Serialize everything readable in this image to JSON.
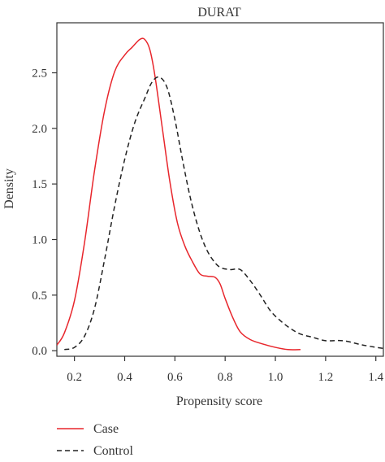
{
  "chart_data": {
    "type": "line",
    "title": "DURAT",
    "xlabel": "Propensity score",
    "ylabel": "Density",
    "xlim": [
      0.13,
      1.43
    ],
    "ylim": [
      -0.05,
      2.95
    ],
    "x_ticks": [
      {
        "value": 0.2,
        "label": "0.2"
      },
      {
        "value": 0.4,
        "label": "0.4"
      },
      {
        "value": 0.6,
        "label": "0.6"
      },
      {
        "value": 0.8,
        "label": "0.8"
      },
      {
        "value": 1.0,
        "label": "1.0"
      },
      {
        "value": 1.2,
        "label": "1.2"
      },
      {
        "value": 1.4,
        "label": "1.4"
      }
    ],
    "y_ticks": [
      {
        "value": 0.0,
        "label": "0.0"
      },
      {
        "value": 0.5,
        "label": "0.5"
      },
      {
        "value": 1.0,
        "label": "1.0"
      },
      {
        "value": 1.5,
        "label": "1.5"
      },
      {
        "value": 2.0,
        "label": "2.0"
      },
      {
        "value": 2.5,
        "label": "2.5"
      }
    ],
    "grid": false,
    "legend_position": "bottom-left",
    "series": [
      {
        "name": "Case",
        "color": "#e8262c",
        "dash": "solid",
        "x": [
          0.13,
          0.16,
          0.2,
          0.24,
          0.28,
          0.32,
          0.36,
          0.4,
          0.43,
          0.46,
          0.48,
          0.5,
          0.52,
          0.55,
          0.58,
          0.61,
          0.64,
          0.67,
          0.7,
          0.73,
          0.76,
          0.78,
          0.8,
          0.83,
          0.86,
          0.9,
          0.95,
          1.0,
          1.05,
          1.1
        ],
        "y": [
          0.05,
          0.16,
          0.45,
          0.97,
          1.62,
          2.16,
          2.51,
          2.66,
          2.73,
          2.8,
          2.8,
          2.71,
          2.48,
          2.0,
          1.52,
          1.15,
          0.94,
          0.8,
          0.69,
          0.67,
          0.66,
          0.6,
          0.47,
          0.3,
          0.17,
          0.1,
          0.06,
          0.03,
          0.01,
          0.01
        ]
      },
      {
        "name": "Control",
        "color": "#222222",
        "dash": "dashed",
        "x": [
          0.16,
          0.2,
          0.24,
          0.28,
          0.32,
          0.36,
          0.4,
          0.44,
          0.48,
          0.51,
          0.54,
          0.57,
          0.6,
          0.63,
          0.66,
          0.69,
          0.72,
          0.75,
          0.78,
          0.82,
          0.86,
          0.9,
          0.94,
          0.98,
          1.02,
          1.06,
          1.1,
          1.15,
          1.2,
          1.27,
          1.35,
          1.43
        ],
        "y": [
          0.01,
          0.03,
          0.13,
          0.38,
          0.82,
          1.3,
          1.72,
          2.05,
          2.27,
          2.42,
          2.46,
          2.36,
          2.08,
          1.72,
          1.39,
          1.13,
          0.94,
          0.82,
          0.75,
          0.73,
          0.73,
          0.63,
          0.5,
          0.36,
          0.27,
          0.2,
          0.15,
          0.12,
          0.09,
          0.09,
          0.05,
          0.02
        ]
      }
    ]
  }
}
